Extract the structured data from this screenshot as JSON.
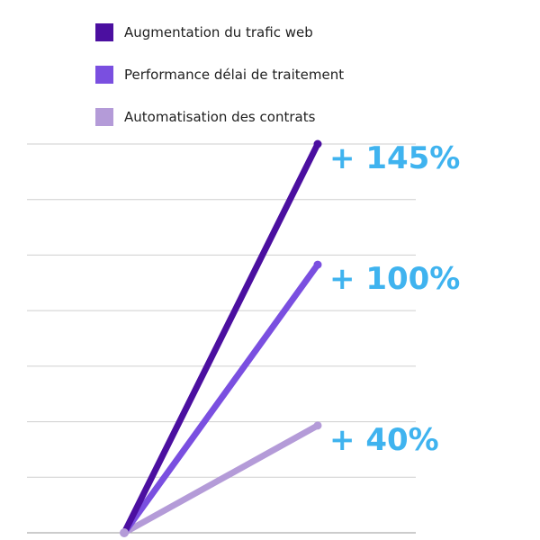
{
  "legend": {
    "items": [
      {
        "label": "Augmentation du trafic web",
        "color": "#4b0fa0"
      },
      {
        "label": "Performance délai de traitement",
        "color": "#7a4fe0"
      },
      {
        "label": "Automatisation des contrats",
        "color": "#b49bd8"
      }
    ]
  },
  "colors": {
    "gridline": "#cfcfcf",
    "value_label": "#3fb3ef"
  },
  "chart_data": {
    "type": "line",
    "x": [
      0,
      1
    ],
    "ylim": [
      0,
      145
    ],
    "grid": true,
    "legend_position": "top-left",
    "series": [
      {
        "name": "Augmentation du trafic web",
        "values": [
          0,
          145
        ],
        "label": "+ 145%",
        "color": "#4b0fa0"
      },
      {
        "name": "Performance délai de traitement",
        "values": [
          0,
          100
        ],
        "label": "+ 100%",
        "color": "#7a4fe0"
      },
      {
        "name": "Automatisation des contrats",
        "values": [
          0,
          40
        ],
        "label": "+ 40%",
        "color": "#b49bd8"
      }
    ]
  }
}
